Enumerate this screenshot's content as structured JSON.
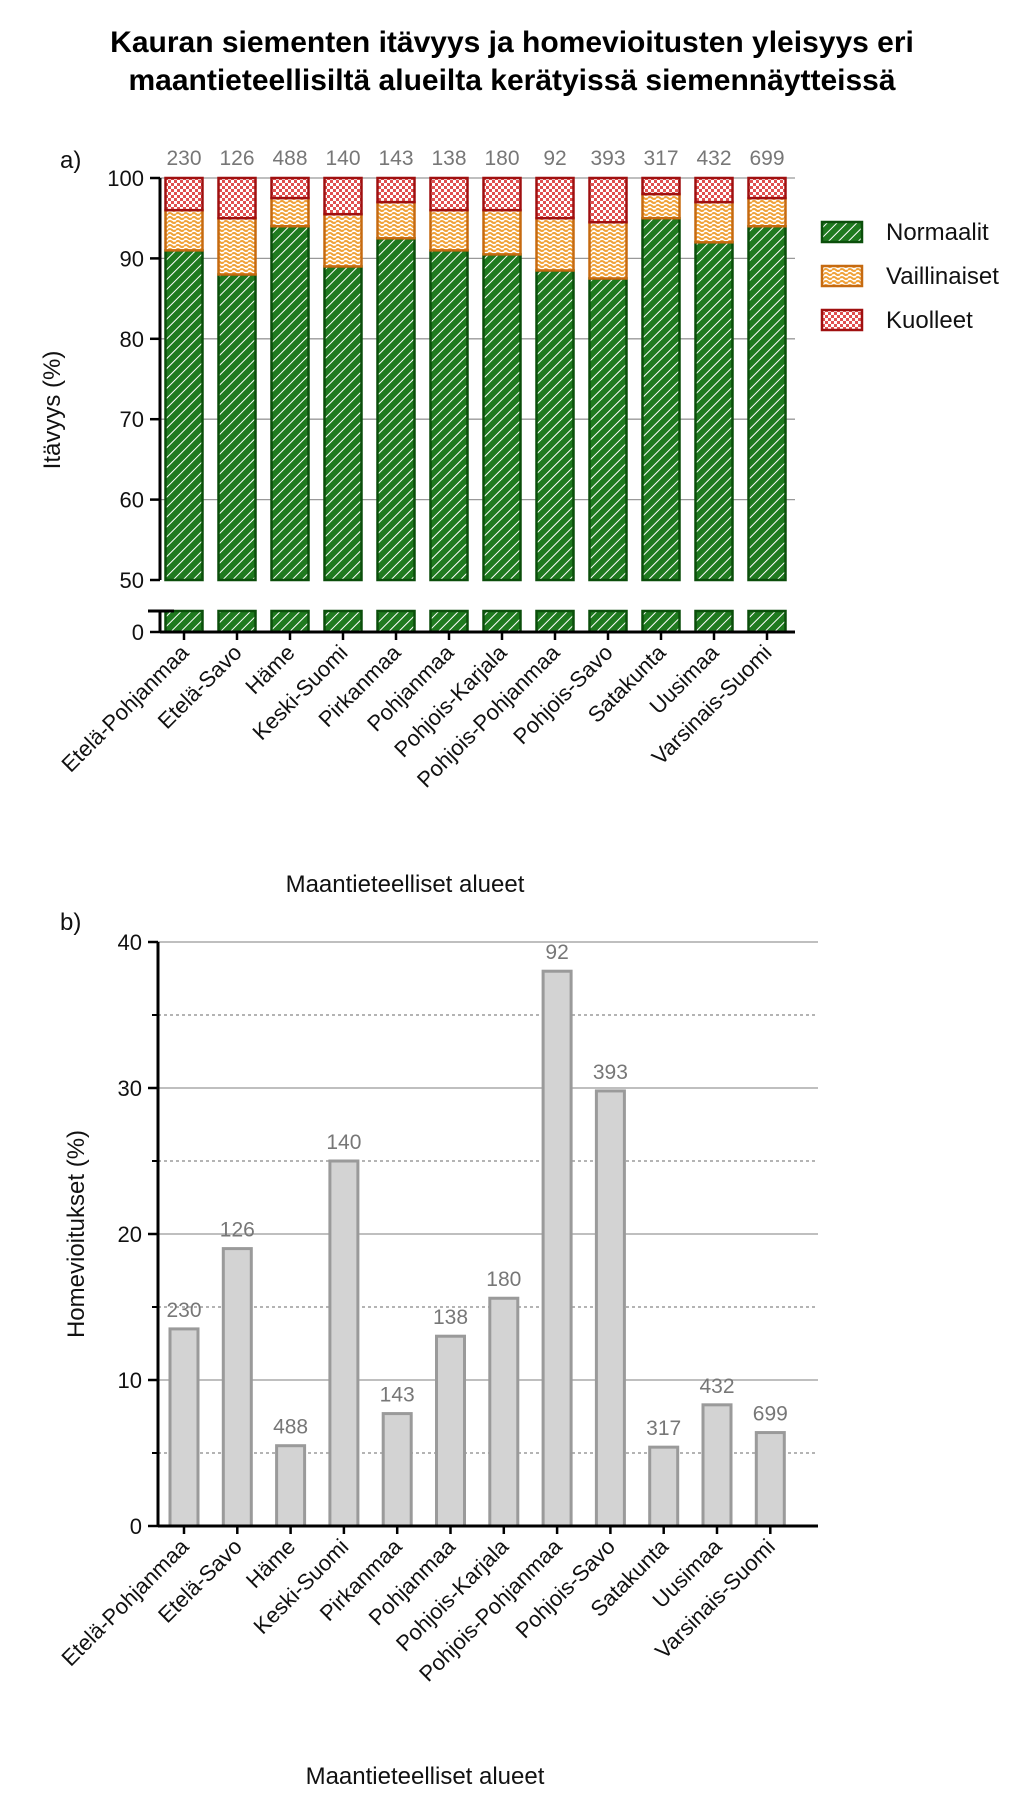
{
  "title_line1": "Kauran siementen itävyys ja homevioitusten yleisyys eri",
  "title_line2": "maantieteellisiltä alueilta kerätyissä siemennäytteissä",
  "colors": {
    "normal_fill": "#1f7a1f",
    "normal_stroke": "#0b4f0b",
    "vaillinainen_fill": "#f0a23a",
    "vaillinainen_stroke": "#c66a10",
    "kuollut_fill": "#e07070",
    "kuollut_stroke": "#a01010",
    "mold_fill": "#d3d3d3",
    "mold_stroke": "#9a9a9a",
    "n_label": "#777777"
  },
  "chart_data": [
    {
      "type": "bar",
      "stacked": true,
      "panel_label": "a)",
      "categories": [
        "Etelä-Pohjanmaa",
        "Etelä-Savo",
        "Häme",
        "Keski-Suomi",
        "Pirkanmaa",
        "Pohjanmaa",
        "Pohjois-Karjala",
        "Pohjois-Pohjanmaa",
        "Pohjois-Savo",
        "Satakunta",
        "Uusimaa",
        "Varsinais-Suomi"
      ],
      "sample_sizes": [
        "230",
        "126",
        "488",
        "140",
        "143",
        "138",
        "180",
        "92",
        "393",
        "317",
        "432",
        "699"
      ],
      "series": [
        {
          "name": "Normaalit",
          "values": [
            91,
            88,
            94,
            89,
            92.5,
            91,
            90.5,
            88.5,
            87.5,
            95,
            92,
            94
          ]
        },
        {
          "name": "Vaillinaiset",
          "values": [
            5,
            7,
            3.5,
            6.5,
            4.5,
            5,
            5.5,
            6.5,
            7,
            3,
            5,
            3.5
          ]
        },
        {
          "name": "Kuolleet",
          "values": [
            4,
            5,
            2.5,
            4.5,
            3,
            4,
            4,
            5,
            5.5,
            2,
            3,
            2.5
          ]
        }
      ],
      "ylabel": "Itävyys (%)",
      "xlabel": "Maantieteelliset alueet",
      "yticks": [
        "0",
        "50",
        "60",
        "70",
        "80",
        "90",
        "100"
      ],
      "ylim": [
        50,
        100
      ],
      "axis_break": true,
      "legend_position": "right",
      "grid": "major-y"
    },
    {
      "type": "bar",
      "panel_label": "b)",
      "categories": [
        "Etelä-Pohjanmaa",
        "Etelä-Savo",
        "Häme",
        "Keski-Suomi",
        "Pirkanmaa",
        "Pohjanmaa",
        "Pohjois-Karjala",
        "Pohjois-Pohjanmaa",
        "Pohjois-Savo",
        "Satakunta",
        "Uusimaa",
        "Varsinais-Suomi"
      ],
      "sample_sizes": [
        "230",
        "126",
        "488",
        "140",
        "143",
        "138",
        "180",
        "92",
        "393",
        "317",
        "432",
        "699"
      ],
      "values": [
        13.5,
        19,
        5.5,
        25,
        7.7,
        13,
        15.6,
        38,
        29.8,
        5.4,
        8.3,
        6.4
      ],
      "ylabel": "Homevioitukset (%)",
      "xlabel": "Maantieteelliset alueet",
      "yticks": [
        "0",
        "10",
        "20",
        "30",
        "40"
      ],
      "ylim": [
        0,
        40
      ],
      "grid": "major-y solid, minor-y dotted"
    }
  ]
}
